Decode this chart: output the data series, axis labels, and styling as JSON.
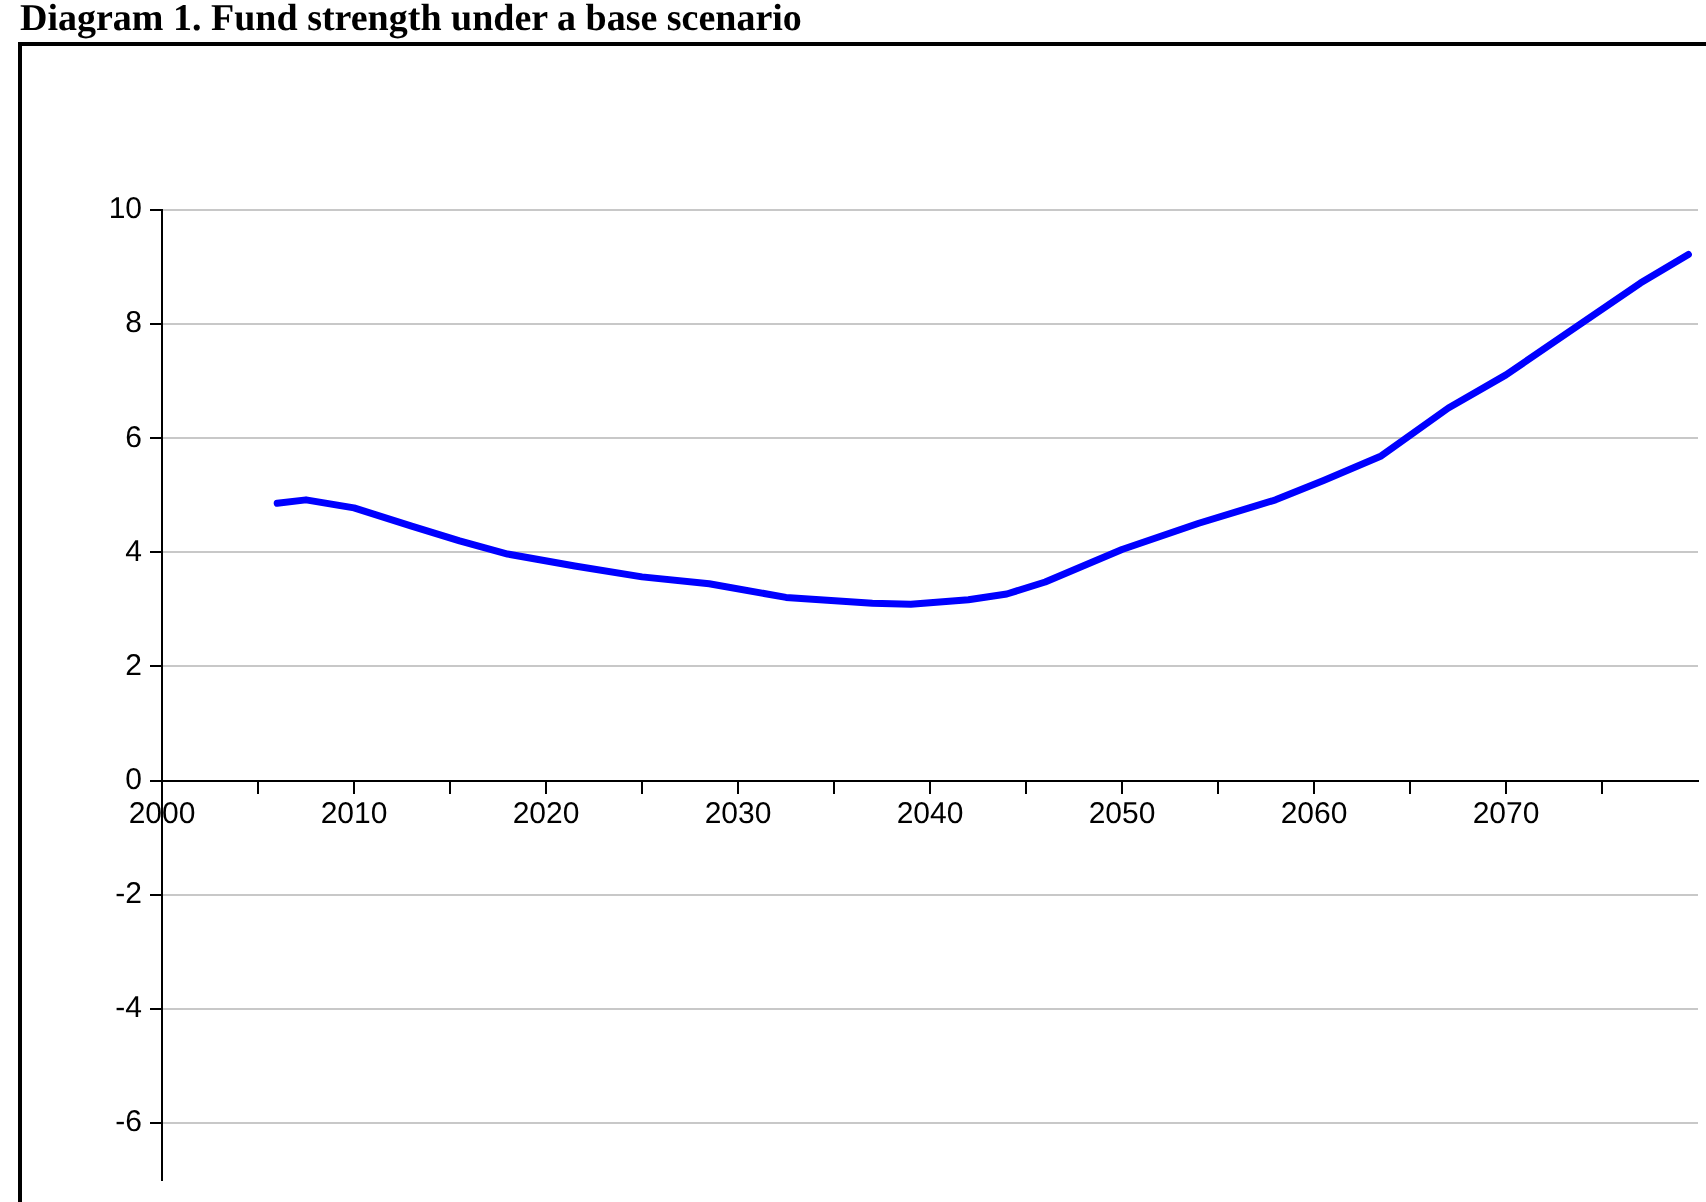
{
  "chart_data": {
    "type": "line",
    "title": "Diagram 1. Fund strength under a base scenario",
    "x": [
      2006,
      2007.5,
      2010,
      2013,
      2015.5,
      2018,
      2021.5,
      2025,
      2028.5,
      2032.5,
      2037,
      2039,
      2042,
      2044,
      2046,
      2050,
      2054,
      2058,
      2060.5,
      2063.5,
      2067,
      2070,
      2074,
      2077,
      2079.5
    ],
    "series": [
      {
        "color": "#0000ff",
        "values": [
          4.86,
          4.92,
          4.78,
          4.46,
          4.2,
          3.97,
          3.76,
          3.57,
          3.45,
          3.21,
          3.11,
          3.09,
          3.17,
          3.27,
          3.48,
          4.05,
          4.51,
          4.92,
          5.26,
          5.69,
          6.53,
          7.11,
          8.03,
          8.72,
          9.22
        ]
      }
    ],
    "xlim": [
      2000,
      2080
    ],
    "xticks": [
      2000,
      {
        "value": 2005,
        "label": null
      },
      2010,
      {
        "value": 2015,
        "label": null
      },
      2020,
      {
        "value": 2025,
        "label": null
      },
      2030,
      {
        "value": 2035,
        "label": null
      },
      2040,
      {
        "value": 2045,
        "label": null
      },
      2050,
      {
        "value": 2055,
        "label": null
      },
      2060,
      {
        "value": 2065,
        "label": null
      },
      2070,
      {
        "value": 2075,
        "label": null
      }
    ],
    "ylim": [
      -7,
      10
    ],
    "yticks": [
      -6,
      -4,
      -2,
      0,
      2,
      4,
      6,
      8,
      10
    ],
    "grid": "y",
    "legend": false,
    "marker": "none",
    "line_style": "solid"
  }
}
